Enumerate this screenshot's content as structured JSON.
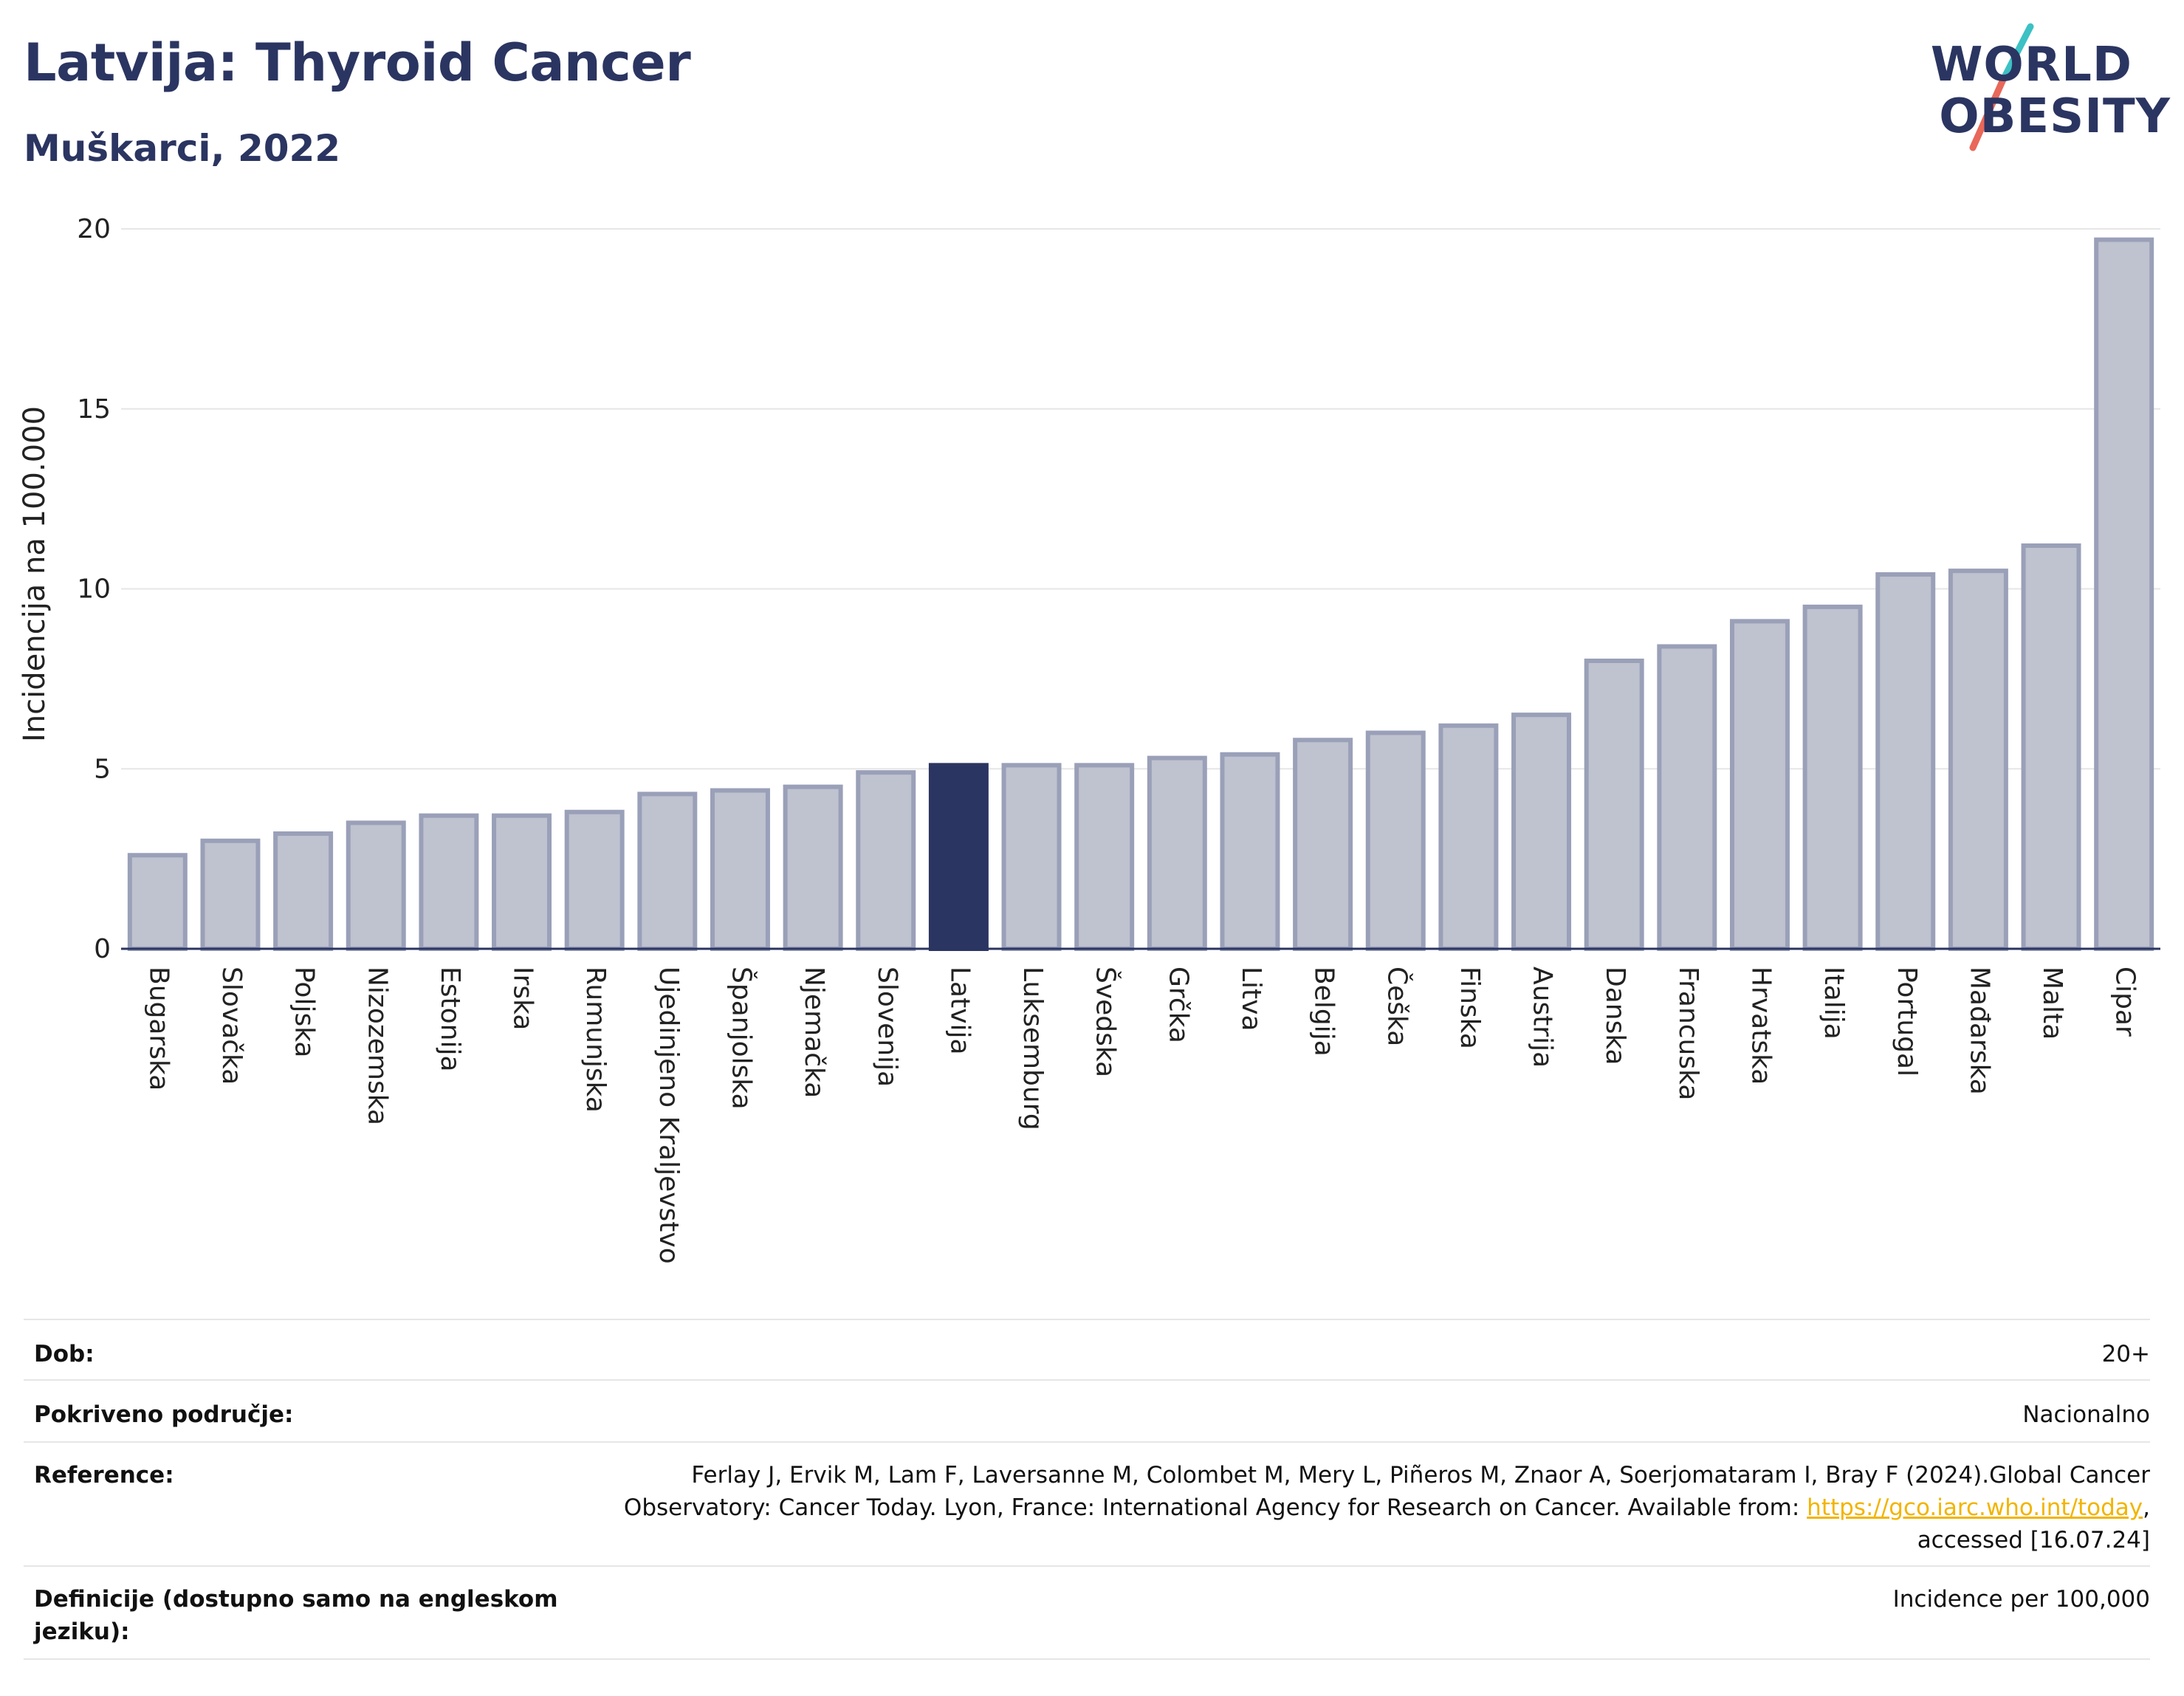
{
  "header": {
    "title": "Latvija: Thyroid Cancer",
    "subtitle": "Muškarci, 2022"
  },
  "logo": {
    "line1": "WORLD",
    "line2": "OBESITY",
    "slash_colors": [
      "#3cc1c4",
      "#e8685a"
    ]
  },
  "colors": {
    "bar": "#bfc2cf",
    "bar_border": "#9aa0b8",
    "highlight": "#2b3561",
    "grid": "#e6e6e6",
    "axis": "#2b3561"
  },
  "chart_data": {
    "type": "bar",
    "ylabel": "Incidencija na 100.000",
    "ylim": [
      0,
      20
    ],
    "yticks": [
      0,
      5,
      10,
      15,
      20
    ],
    "highlight": "Latvija",
    "grid": true,
    "categories": [
      "Bugarska",
      "Slovačka",
      "Poljska",
      "Nizozemska",
      "Estonija",
      "Irska",
      "Rumunjska",
      "Ujedinjeno Kraljevstvo",
      "Španjolska",
      "Njemačka",
      "Slovenija",
      "Latvija",
      "Luksemburg",
      "Švedska",
      "Grčka",
      "Litva",
      "Belgija",
      "Češka",
      "Finska",
      "Austrija",
      "Danska",
      "Francuska",
      "Hrvatska",
      "Italija",
      "Portugal",
      "Mađarska",
      "Malta",
      "Cipar"
    ],
    "values": [
      2.6,
      3.0,
      3.2,
      3.5,
      3.7,
      3.7,
      3.8,
      4.3,
      4.4,
      4.5,
      4.9,
      5.1,
      5.1,
      5.1,
      5.3,
      5.4,
      5.8,
      6.0,
      6.2,
      6.5,
      8.0,
      8.4,
      9.1,
      9.5,
      10.4,
      10.5,
      11.2,
      19.7
    ]
  },
  "meta": {
    "age_label": "Dob:",
    "age_value": "20+",
    "coverage_label": "Pokriveno područje:",
    "coverage_value": "Nacionalno",
    "reference_label": "Reference:",
    "reference_line1": "Ferlay J, Ervik M, Lam F, Laversanne M, Colombet M, Mery L, Piñeros M, Znaor A, Soerjomataram I, Bray F (2024).Global Cancer",
    "reference_line2_pre": "Observatory: Cancer Today. Lyon, France: International Agency for Research on Cancer. Available from: ",
    "reference_link": "https://gco.iarc.who.int/today",
    "reference_line2_post": ",",
    "reference_line3": "accessed [16.07.24]",
    "definition_label": "Definicije (dostupno samo na engleskom jeziku):",
    "definition_value": "Incidence per 100,000"
  }
}
